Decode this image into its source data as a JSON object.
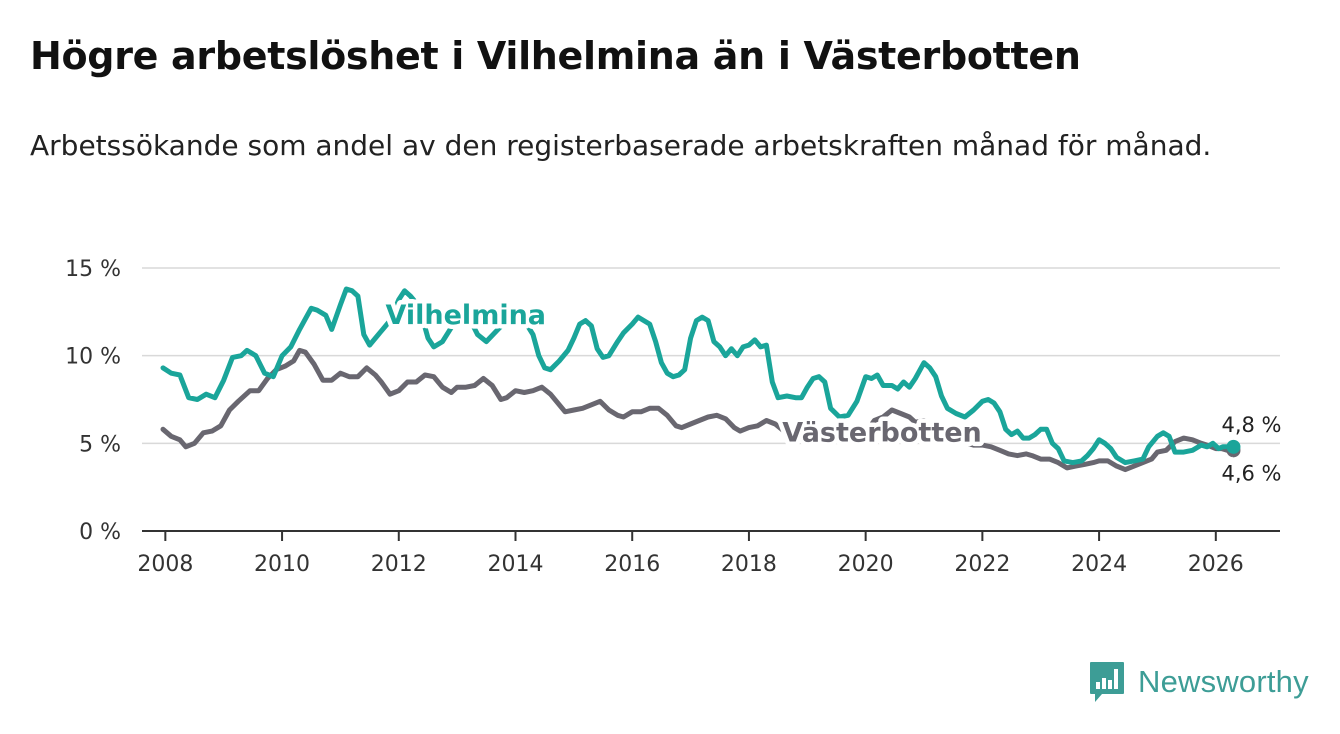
{
  "title": "Högre arbetslöshet i Vilhelmina än i Västerbotten",
  "subtitle": "Arbetssökande som andel av den registerbaserade arbetskraften månad för månad.",
  "brand": {
    "name": "Newsworthy",
    "color": "#3d9d96",
    "icon": "newsworthy-logo-icon"
  },
  "colors": {
    "vilhelmina": "#1aa59a",
    "vasterbotten": "#696770",
    "grid": "#d9d9d9",
    "axis": "#333333"
  },
  "chart_data": {
    "type": "line",
    "title": "Högre arbetslöshet i Vilhelmina än i Västerbotten",
    "xlabel": "",
    "ylabel": "",
    "xlim": [
      2007.6,
      2027.1
    ],
    "ylim": [
      0,
      15
    ],
    "grid": true,
    "legend": "inline labels",
    "yticks": [
      {
        "value": 0,
        "label": "0 %"
      },
      {
        "value": 5,
        "label": "5 %"
      },
      {
        "value": 10,
        "label": "10 %"
      },
      {
        "value": 15,
        "label": "15 %"
      }
    ],
    "xticks": [
      {
        "value": 2008,
        "label": "2008"
      },
      {
        "value": 2010,
        "label": "2010"
      },
      {
        "value": 2012,
        "label": "2012"
      },
      {
        "value": 2014,
        "label": "2014"
      },
      {
        "value": 2016,
        "label": "2016"
      },
      {
        "value": 2018,
        "label": "2018"
      },
      {
        "value": 2020,
        "label": "2020"
      },
      {
        "value": 2022,
        "label": "2022"
      },
      {
        "value": 2024,
        "label": "2024"
      },
      {
        "value": 2026,
        "label": "2026"
      }
    ],
    "series": [
      {
        "name": "Vilhelmina",
        "label": "Vilhelmina",
        "label_position": [
          2013.4,
          12.5
        ],
        "end_label": "4,8 %",
        "points": [
          [
            2007.96,
            9.3
          ],
          [
            2008.1,
            9.0
          ],
          [
            2008.25,
            8.9
          ],
          [
            2008.4,
            7.6
          ],
          [
            2008.55,
            7.5
          ],
          [
            2008.7,
            7.8
          ],
          [
            2008.85,
            7.6
          ],
          [
            2009.0,
            8.6
          ],
          [
            2009.15,
            9.9
          ],
          [
            2009.3,
            10.0
          ],
          [
            2009.4,
            10.3
          ],
          [
            2009.55,
            10.0
          ],
          [
            2009.7,
            9.0
          ],
          [
            2009.85,
            8.8
          ],
          [
            2010.0,
            10.0
          ],
          [
            2010.15,
            10.5
          ],
          [
            2010.3,
            11.5
          ],
          [
            2010.4,
            12.1
          ],
          [
            2010.5,
            12.7
          ],
          [
            2010.6,
            12.6
          ],
          [
            2010.75,
            12.3
          ],
          [
            2010.85,
            11.5
          ],
          [
            2011.0,
            12.9
          ],
          [
            2011.1,
            13.8
          ],
          [
            2011.2,
            13.7
          ],
          [
            2011.3,
            13.4
          ],
          [
            2011.4,
            11.2
          ],
          [
            2011.5,
            10.6
          ],
          [
            2011.6,
            11.0
          ],
          [
            2011.75,
            11.6
          ],
          [
            2011.85,
            12.0
          ],
          [
            2012.0,
            13.2
          ],
          [
            2012.1,
            13.7
          ],
          [
            2012.2,
            13.4
          ],
          [
            2012.3,
            13.0
          ],
          [
            2012.4,
            12.2
          ],
          [
            2012.5,
            11.0
          ],
          [
            2012.6,
            10.5
          ],
          [
            2012.75,
            10.8
          ],
          [
            2012.9,
            11.6
          ],
          [
            2013.0,
            12.5
          ],
          [
            2013.2,
            12.2
          ],
          [
            2013.35,
            11.2
          ],
          [
            2013.5,
            10.8
          ],
          [
            2013.7,
            11.5
          ],
          [
            2013.85,
            12.0
          ],
          [
            2014.0,
            12.3
          ],
          [
            2014.15,
            12.0
          ],
          [
            2014.3,
            11.2
          ],
          [
            2014.4,
            10.0
          ],
          [
            2014.5,
            9.3
          ],
          [
            2014.6,
            9.2
          ],
          [
            2014.75,
            9.7
          ],
          [
            2014.9,
            10.3
          ],
          [
            2015.0,
            11.0
          ],
          [
            2015.1,
            11.8
          ],
          [
            2015.2,
            12.0
          ],
          [
            2015.3,
            11.7
          ],
          [
            2015.4,
            10.4
          ],
          [
            2015.5,
            9.9
          ],
          [
            2015.6,
            10.0
          ],
          [
            2015.75,
            10.8
          ],
          [
            2015.85,
            11.3
          ],
          [
            2016.0,
            11.8
          ],
          [
            2016.1,
            12.2
          ],
          [
            2016.2,
            12.0
          ],
          [
            2016.3,
            11.8
          ],
          [
            2016.4,
            10.8
          ],
          [
            2016.5,
            9.6
          ],
          [
            2016.6,
            9.0
          ],
          [
            2016.7,
            8.8
          ],
          [
            2016.8,
            8.9
          ],
          [
            2016.9,
            9.2
          ],
          [
            2017.0,
            11.0
          ],
          [
            2017.1,
            12.0
          ],
          [
            2017.2,
            12.2
          ],
          [
            2017.3,
            12.0
          ],
          [
            2017.4,
            10.8
          ],
          [
            2017.5,
            10.5
          ],
          [
            2017.6,
            10.0
          ],
          [
            2017.7,
            10.4
          ],
          [
            2017.8,
            10.0
          ],
          [
            2017.9,
            10.5
          ],
          [
            2018.0,
            10.6
          ],
          [
            2018.1,
            10.9
          ],
          [
            2018.2,
            10.5
          ],
          [
            2018.3,
            10.6
          ],
          [
            2018.4,
            8.5
          ],
          [
            2018.5,
            7.6
          ],
          [
            2018.65,
            7.7
          ],
          [
            2018.8,
            7.6
          ],
          [
            2018.9,
            7.6
          ],
          [
            2019.0,
            8.2
          ],
          [
            2019.1,
            8.7
          ],
          [
            2019.2,
            8.8
          ],
          [
            2019.3,
            8.5
          ],
          [
            2019.4,
            7.0
          ],
          [
            2019.55,
            6.5
          ],
          [
            2019.7,
            6.6
          ],
          [
            2019.85,
            7.4
          ],
          [
            2020.0,
            8.8
          ],
          [
            2020.1,
            8.7
          ],
          [
            2020.2,
            8.9
          ],
          [
            2020.3,
            8.3
          ],
          [
            2020.45,
            8.3
          ],
          [
            2020.55,
            8.1
          ],
          [
            2020.65,
            8.5
          ],
          [
            2020.75,
            8.2
          ],
          [
            2020.85,
            8.7
          ],
          [
            2021.0,
            9.6
          ],
          [
            2021.1,
            9.3
          ],
          [
            2021.2,
            8.8
          ],
          [
            2021.3,
            7.7
          ],
          [
            2021.4,
            7.0
          ],
          [
            2021.55,
            6.7
          ],
          [
            2021.7,
            6.5
          ],
          [
            2021.85,
            6.9
          ],
          [
            2022.0,
            7.4
          ],
          [
            2022.1,
            7.5
          ],
          [
            2022.2,
            7.3
          ],
          [
            2022.3,
            6.8
          ],
          [
            2022.4,
            5.8
          ],
          [
            2022.5,
            5.5
          ],
          [
            2022.6,
            5.7
          ],
          [
            2022.7,
            5.3
          ],
          [
            2022.8,
            5.3
          ],
          [
            2022.9,
            5.5
          ],
          [
            2023.0,
            5.8
          ],
          [
            2023.1,
            5.8
          ],
          [
            2023.2,
            5.0
          ],
          [
            2023.3,
            4.7
          ],
          [
            2023.4,
            4.0
          ],
          [
            2023.55,
            3.9
          ],
          [
            2023.7,
            4.0
          ],
          [
            2023.8,
            4.3
          ],
          [
            2023.9,
            4.7
          ],
          [
            2024.0,
            5.2
          ],
          [
            2024.1,
            5.0
          ],
          [
            2024.2,
            4.7
          ],
          [
            2024.3,
            4.2
          ],
          [
            2024.45,
            3.9
          ],
          [
            2024.6,
            4.0
          ],
          [
            2024.75,
            4.1
          ],
          [
            2024.85,
            4.8
          ],
          [
            2025.0,
            5.4
          ],
          [
            2025.1,
            5.6
          ],
          [
            2025.2,
            5.4
          ],
          [
            2025.3,
            4.5
          ],
          [
            2025.45,
            4.5
          ],
          [
            2025.6,
            4.6
          ],
          [
            2025.75,
            4.9
          ],
          [
            2025.85,
            4.8
          ],
          [
            2025.95,
            5.0
          ],
          [
            2026.05,
            4.7
          ],
          [
            2026.12,
            4.8
          ],
          [
            2026.2,
            4.8
          ]
        ]
      },
      {
        "name": "Västerbotten",
        "label": "Västerbotten",
        "label_position": [
          2019.6,
          5.8
        ],
        "end_label": "4,6 %",
        "points": [
          [
            2007.96,
            5.8
          ],
          [
            2008.1,
            5.4
          ],
          [
            2008.25,
            5.2
          ],
          [
            2008.35,
            4.8
          ],
          [
            2008.5,
            5.0
          ],
          [
            2008.65,
            5.6
          ],
          [
            2008.8,
            5.7
          ],
          [
            2008.95,
            6.0
          ],
          [
            2009.1,
            6.9
          ],
          [
            2009.25,
            7.4
          ],
          [
            2009.45,
            8.0
          ],
          [
            2009.6,
            8.0
          ],
          [
            2009.75,
            8.7
          ],
          [
            2009.9,
            9.2
          ],
          [
            2010.05,
            9.4
          ],
          [
            2010.2,
            9.7
          ],
          [
            2010.3,
            10.3
          ],
          [
            2010.4,
            10.2
          ],
          [
            2010.55,
            9.5
          ],
          [
            2010.7,
            8.6
          ],
          [
            2010.85,
            8.6
          ],
          [
            2011.0,
            9.0
          ],
          [
            2011.15,
            8.8
          ],
          [
            2011.3,
            8.8
          ],
          [
            2011.45,
            9.3
          ],
          [
            2011.6,
            8.9
          ],
          [
            2011.7,
            8.5
          ],
          [
            2011.85,
            7.8
          ],
          [
            2012.0,
            8.0
          ],
          [
            2012.15,
            8.5
          ],
          [
            2012.3,
            8.5
          ],
          [
            2012.45,
            8.9
          ],
          [
            2012.6,
            8.8
          ],
          [
            2012.75,
            8.2
          ],
          [
            2012.9,
            7.9
          ],
          [
            2013.0,
            8.2
          ],
          [
            2013.15,
            8.2
          ],
          [
            2013.3,
            8.3
          ],
          [
            2013.45,
            8.7
          ],
          [
            2013.6,
            8.3
          ],
          [
            2013.75,
            7.5
          ],
          [
            2013.85,
            7.6
          ],
          [
            2014.0,
            8.0
          ],
          [
            2014.15,
            7.9
          ],
          [
            2014.3,
            8.0
          ],
          [
            2014.45,
            8.2
          ],
          [
            2014.6,
            7.8
          ],
          [
            2014.75,
            7.2
          ],
          [
            2014.85,
            6.8
          ],
          [
            2015.0,
            6.9
          ],
          [
            2015.15,
            7.0
          ],
          [
            2015.3,
            7.2
          ],
          [
            2015.45,
            7.4
          ],
          [
            2015.6,
            6.9
          ],
          [
            2015.75,
            6.6
          ],
          [
            2015.85,
            6.5
          ],
          [
            2016.0,
            6.8
          ],
          [
            2016.15,
            6.8
          ],
          [
            2016.3,
            7.0
          ],
          [
            2016.45,
            7.0
          ],
          [
            2016.6,
            6.6
          ],
          [
            2016.75,
            6.0
          ],
          [
            2016.85,
            5.9
          ],
          [
            2017.0,
            6.1
          ],
          [
            2017.15,
            6.3
          ],
          [
            2017.3,
            6.5
          ],
          [
            2017.45,
            6.6
          ],
          [
            2017.6,
            6.4
          ],
          [
            2017.75,
            5.9
          ],
          [
            2017.85,
            5.7
          ],
          [
            2018.0,
            5.9
          ],
          [
            2018.15,
            6.0
          ],
          [
            2018.3,
            6.3
          ],
          [
            2018.45,
            6.1
          ],
          [
            2018.6,
            5.7
          ],
          [
            2018.75,
            5.3
          ],
          [
            2018.9,
            5.3
          ],
          [
            2019.0,
            5.5
          ],
          [
            2019.15,
            5.5
          ],
          [
            2019.3,
            5.6
          ],
          [
            2019.45,
            5.6
          ],
          [
            2019.6,
            5.3
          ],
          [
            2019.75,
            5.2
          ],
          [
            2019.9,
            5.3
          ],
          [
            2020.0,
            5.6
          ],
          [
            2020.15,
            6.3
          ],
          [
            2020.3,
            6.5
          ],
          [
            2020.45,
            6.9
          ],
          [
            2020.6,
            6.7
          ],
          [
            2020.75,
            6.5
          ],
          [
            2020.85,
            6.2
          ],
          [
            2021.0,
            6.3
          ],
          [
            2021.15,
            6.0
          ],
          [
            2021.3,
            5.7
          ],
          [
            2021.45,
            5.6
          ],
          [
            2021.6,
            5.3
          ],
          [
            2021.75,
            5.0
          ],
          [
            2021.85,
            4.9
          ],
          [
            2022.0,
            4.9
          ],
          [
            2022.15,
            4.8
          ],
          [
            2022.3,
            4.6
          ],
          [
            2022.45,
            4.4
          ],
          [
            2022.6,
            4.3
          ],
          [
            2022.75,
            4.4
          ],
          [
            2022.85,
            4.3
          ],
          [
            2023.0,
            4.1
          ],
          [
            2023.15,
            4.1
          ],
          [
            2023.3,
            3.9
          ],
          [
            2023.45,
            3.6
          ],
          [
            2023.6,
            3.7
          ],
          [
            2023.75,
            3.8
          ],
          [
            2023.9,
            3.9
          ],
          [
            2024.0,
            4.0
          ],
          [
            2024.15,
            4.0
          ],
          [
            2024.3,
            3.7
          ],
          [
            2024.45,
            3.5
          ],
          [
            2024.6,
            3.7
          ],
          [
            2024.75,
            3.9
          ],
          [
            2024.9,
            4.1
          ],
          [
            2025.0,
            4.5
          ],
          [
            2025.15,
            4.6
          ],
          [
            2025.3,
            5.1
          ],
          [
            2025.45,
            5.3
          ],
          [
            2025.6,
            5.2
          ],
          [
            2025.75,
            5.0
          ],
          [
            2025.85,
            4.9
          ],
          [
            2026.0,
            4.7
          ],
          [
            2026.1,
            4.7
          ],
          [
            2026.2,
            4.6
          ]
        ]
      }
    ]
  }
}
